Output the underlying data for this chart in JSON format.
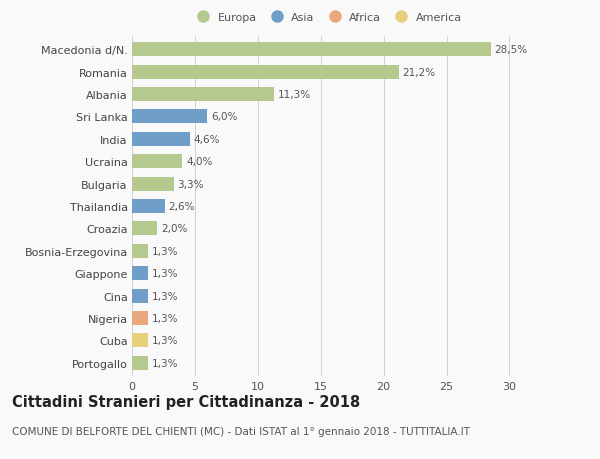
{
  "categories": [
    "Macedonia d/N.",
    "Romania",
    "Albania",
    "Sri Lanka",
    "India",
    "Ucraina",
    "Bulgaria",
    "Thailandia",
    "Croazia",
    "Bosnia-Erzegovina",
    "Giappone",
    "Cina",
    "Nigeria",
    "Cuba",
    "Portogallo"
  ],
  "values": [
    28.5,
    21.2,
    11.3,
    6.0,
    4.6,
    4.0,
    3.3,
    2.6,
    2.0,
    1.3,
    1.3,
    1.3,
    1.3,
    1.3,
    1.3
  ],
  "labels": [
    "28,5%",
    "21,2%",
    "11,3%",
    "6,0%",
    "4,6%",
    "4,0%",
    "3,3%",
    "2,6%",
    "2,0%",
    "1,3%",
    "1,3%",
    "1,3%",
    "1,3%",
    "1,3%",
    "1,3%"
  ],
  "continents": [
    "Europa",
    "Europa",
    "Europa",
    "Asia",
    "Asia",
    "Europa",
    "Europa",
    "Asia",
    "Europa",
    "Europa",
    "Asia",
    "Asia",
    "Africa",
    "America",
    "Europa"
  ],
  "colors": {
    "Europa": "#b5c98e",
    "Asia": "#6f9ec9",
    "Africa": "#e8a87c",
    "America": "#e8cf7c"
  },
  "xlim": [
    0,
    31
  ],
  "xticks": [
    0,
    5,
    10,
    15,
    20,
    25,
    30
  ],
  "title": "Cittadini Stranieri per Cittadinanza - 2018",
  "subtitle": "COMUNE DI BELFORTE DEL CHIENTI (MC) - Dati ISTAT al 1° gennaio 2018 - TUTTITALIA.IT",
  "background_color": "#f9f9f9",
  "grid_color": "#d0d0d0",
  "bar_height": 0.62,
  "title_fontsize": 10.5,
  "subtitle_fontsize": 7.5,
  "label_fontsize": 8,
  "tick_fontsize": 8,
  "value_fontsize": 7.5
}
